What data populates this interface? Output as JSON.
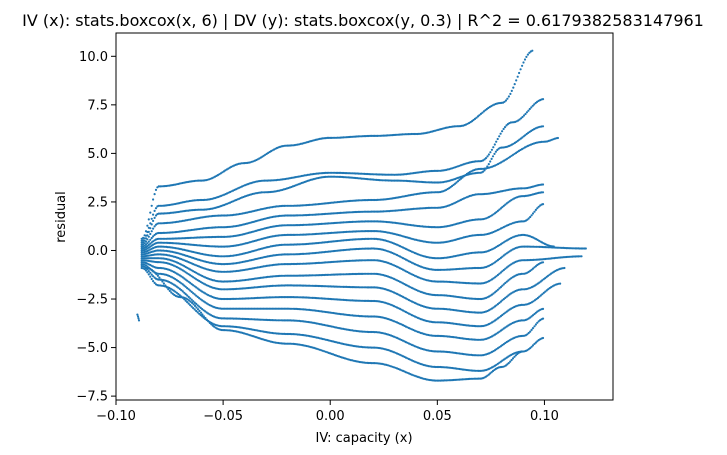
{
  "chart_data": {
    "type": "scatter",
    "title": "IV (x): stats.boxcox(x, 6) | DV (y): stats.boxcox(y, 0.3) | R^2 = 0.6179382583147961",
    "xlabel": "IV: capacity (x)",
    "ylabel": "residual",
    "xlim": [
      -0.1,
      0.132
    ],
    "ylim": [
      -7.7,
      11.2
    ],
    "x_ticks": [
      -0.1,
      -0.05,
      0.0,
      0.05,
      0.1
    ],
    "x_tick_labels": [
      "−0.10",
      "−0.05",
      "0.00",
      "0.05",
      "0.10"
    ],
    "y_ticks": [
      -7.5,
      -5.0,
      -2.5,
      0.0,
      2.5,
      5.0,
      7.5,
      10.0
    ],
    "y_tick_labels": [
      "−7.5",
      "−5.0",
      "−2.5",
      "0.0",
      "2.5",
      "5.0",
      "7.5",
      "10.0"
    ],
    "grid": false,
    "marker_color": "#1f77b4",
    "series_curves": [
      [
        [
          -0.088,
          0.6
        ],
        [
          -0.08,
          3.3
        ],
        [
          -0.06,
          3.6
        ],
        [
          -0.04,
          4.5
        ],
        [
          -0.02,
          5.4
        ],
        [
          0.0,
          5.8
        ],
        [
          0.02,
          5.9
        ],
        [
          0.04,
          6.0
        ],
        [
          0.06,
          6.4
        ],
        [
          0.08,
          7.6
        ],
        [
          0.095,
          10.3
        ]
      ],
      [
        [
          -0.088,
          0.5
        ],
        [
          -0.08,
          2.3
        ],
        [
          -0.06,
          2.6
        ],
        [
          -0.03,
          3.6
        ],
        [
          0.0,
          4.0
        ],
        [
          0.03,
          3.9
        ],
        [
          0.05,
          4.1
        ],
        [
          0.07,
          4.6
        ],
        [
          0.085,
          6.6
        ],
        [
          0.1,
          7.8
        ]
      ],
      [
        [
          -0.088,
          0.4
        ],
        [
          -0.08,
          1.9
        ],
        [
          -0.06,
          2.1
        ],
        [
          -0.03,
          3.0
        ],
        [
          0.0,
          3.8
        ],
        [
          0.03,
          3.6
        ],
        [
          0.05,
          3.5
        ],
        [
          0.07,
          4.0
        ],
        [
          0.08,
          5.3
        ],
        [
          0.1,
          6.4
        ]
      ],
      [
        [
          -0.088,
          0.3
        ],
        [
          -0.08,
          1.4
        ],
        [
          -0.05,
          1.8
        ],
        [
          -0.02,
          2.3
        ],
        [
          0.02,
          2.6
        ],
        [
          0.05,
          3.0
        ],
        [
          0.07,
          4.2
        ],
        [
          0.1,
          5.6
        ],
        [
          0.107,
          5.8
        ]
      ],
      [
        [
          -0.088,
          0.2
        ],
        [
          -0.08,
          0.9
        ],
        [
          -0.05,
          1.2
        ],
        [
          -0.02,
          1.8
        ],
        [
          0.02,
          2.0
        ],
        [
          0.05,
          2.2
        ],
        [
          0.07,
          2.9
        ],
        [
          0.09,
          3.2
        ],
        [
          0.1,
          3.4
        ]
      ],
      [
        [
          -0.088,
          0.1
        ],
        [
          -0.08,
          0.6
        ],
        [
          -0.05,
          0.7
        ],
        [
          -0.02,
          1.3
        ],
        [
          0.02,
          1.5
        ],
        [
          0.05,
          1.2
        ],
        [
          0.07,
          1.6
        ],
        [
          0.09,
          2.8
        ],
        [
          0.1,
          3.0
        ]
      ],
      [
        [
          -0.088,
          0.0
        ],
        [
          -0.08,
          0.4
        ],
        [
          -0.05,
          0.2
        ],
        [
          -0.02,
          0.8
        ],
        [
          0.02,
          1.0
        ],
        [
          0.05,
          0.4
        ],
        [
          0.07,
          0.8
        ],
        [
          0.09,
          1.5
        ],
        [
          0.1,
          2.4
        ]
      ],
      [
        [
          -0.088,
          -0.1
        ],
        [
          -0.08,
          0.2
        ],
        [
          -0.05,
          -0.3
        ],
        [
          -0.02,
          0.3
        ],
        [
          0.02,
          0.6
        ],
        [
          0.05,
          -0.4
        ],
        [
          0.07,
          -0.1
        ],
        [
          0.09,
          0.8
        ],
        [
          0.105,
          0.2
        ]
      ],
      [
        [
          -0.088,
          -0.2
        ],
        [
          -0.08,
          0.0
        ],
        [
          -0.05,
          -0.7
        ],
        [
          -0.02,
          -0.2
        ],
        [
          0.02,
          0.1
        ],
        [
          0.05,
          -1.0
        ],
        [
          0.07,
          -0.9
        ],
        [
          0.09,
          0.2
        ],
        [
          0.12,
          0.1
        ]
      ],
      [
        [
          -0.088,
          -0.3
        ],
        [
          -0.08,
          -0.2
        ],
        [
          -0.05,
          -1.1
        ],
        [
          -0.02,
          -0.7
        ],
        [
          0.02,
          -0.5
        ],
        [
          0.05,
          -1.6
        ],
        [
          0.07,
          -1.7
        ],
        [
          0.09,
          -0.5
        ],
        [
          0.118,
          -0.3
        ]
      ],
      [
        [
          -0.088,
          -0.4
        ],
        [
          -0.08,
          -0.4
        ],
        [
          -0.05,
          -1.6
        ],
        [
          -0.02,
          -1.3
        ],
        [
          0.02,
          -1.2
        ],
        [
          0.05,
          -2.3
        ],
        [
          0.07,
          -2.5
        ],
        [
          0.09,
          -1.2
        ],
        [
          0.1,
          -0.6
        ]
      ],
      [
        [
          -0.088,
          -0.5
        ],
        [
          -0.08,
          -0.6
        ],
        [
          -0.05,
          -2.0
        ],
        [
          -0.02,
          -1.8
        ],
        [
          0.02,
          -1.9
        ],
        [
          0.05,
          -3.0
        ],
        [
          0.07,
          -3.2
        ],
        [
          0.09,
          -2.0
        ],
        [
          0.11,
          -0.9
        ]
      ],
      [
        [
          -0.088,
          -0.6
        ],
        [
          -0.08,
          -0.9
        ],
        [
          -0.05,
          -2.5
        ],
        [
          -0.02,
          -2.4
        ],
        [
          0.02,
          -2.6
        ],
        [
          0.05,
          -3.7
        ],
        [
          0.07,
          -3.9
        ],
        [
          0.09,
          -2.8
        ],
        [
          0.108,
          -1.7
        ]
      ],
      [
        [
          -0.088,
          -0.7
        ],
        [
          -0.08,
          -1.2
        ],
        [
          -0.05,
          -3.0
        ],
        [
          -0.02,
          -3.0
        ],
        [
          0.02,
          -3.4
        ],
        [
          0.05,
          -4.4
        ],
        [
          0.07,
          -4.6
        ],
        [
          0.09,
          -3.6
        ],
        [
          0.1,
          -3.0
        ]
      ],
      [
        [
          -0.088,
          -0.8
        ],
        [
          -0.08,
          -1.5
        ],
        [
          -0.05,
          -3.5
        ],
        [
          -0.02,
          -3.6
        ],
        [
          0.02,
          -4.2
        ],
        [
          0.05,
          -5.2
        ],
        [
          0.07,
          -5.4
        ],
        [
          0.09,
          -4.4
        ],
        [
          0.1,
          -3.5
        ]
      ],
      [
        [
          -0.088,
          -0.9
        ],
        [
          -0.08,
          -1.8
        ],
        [
          -0.05,
          -3.9
        ],
        [
          -0.02,
          -4.3
        ],
        [
          0.02,
          -5.0
        ],
        [
          0.05,
          -6.0
        ],
        [
          0.07,
          -6.2
        ],
        [
          0.09,
          -5.2
        ],
        [
          0.1,
          -4.5
        ]
      ],
      [
        [
          -0.086,
          -0.9
        ],
        [
          -0.07,
          -2.4
        ],
        [
          -0.05,
          -4.1
        ],
        [
          -0.02,
          -4.8
        ],
        [
          0.02,
          -5.8
        ],
        [
          0.05,
          -6.7
        ],
        [
          0.07,
          -6.6
        ],
        [
          0.08,
          -6.0
        ],
        [
          0.09,
          -5.2
        ]
      ],
      [
        [
          -0.09,
          -3.3
        ],
        [
          -0.0895,
          -3.5
        ],
        [
          -0.089,
          -3.7
        ]
      ]
    ]
  }
}
